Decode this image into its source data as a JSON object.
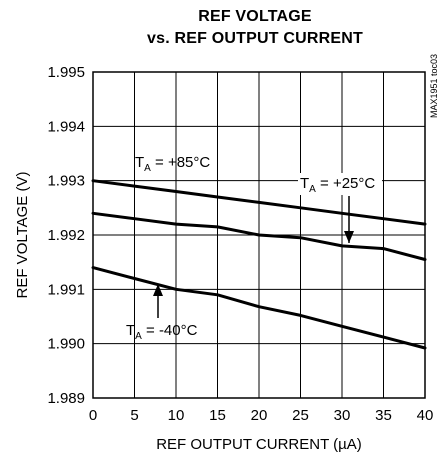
{
  "chart_data": {
    "type": "line",
    "title_line1": "REF VOLTAGE",
    "title_line2": "vs. REF OUTPUT CURRENT",
    "xlabel": "REF OUTPUT CURRENT (µA)",
    "ylabel": "REF VOLTAGE (V)",
    "watermark": "MAX1951 toc03",
    "xlim": [
      0,
      40
    ],
    "ylim": [
      1.989,
      1.995
    ],
    "xticks": [
      0,
      5,
      10,
      15,
      20,
      25,
      30,
      35,
      40
    ],
    "yticks": [
      "1.989",
      "1.990",
      "1.991",
      "1.992",
      "1.993",
      "1.994",
      "1.995"
    ],
    "grid": true,
    "series": [
      {
        "name": "TA = +85°C",
        "x": [
          0,
          5,
          10,
          15,
          20,
          25,
          30,
          35,
          40
        ],
        "y": [
          1.993,
          1.9929,
          1.9928,
          1.9927,
          1.9926,
          1.9925,
          1.9924,
          1.9923,
          1.9922
        ]
      },
      {
        "name": "TA = +25°C",
        "x": [
          0,
          5,
          10,
          15,
          20,
          25,
          30,
          35,
          40
        ],
        "y": [
          1.9924,
          1.9923,
          1.9922,
          1.99215,
          1.992,
          1.99195,
          1.9918,
          1.99175,
          1.99155
        ]
      },
      {
        "name": "TA = -40°C",
        "x": [
          0,
          5,
          10,
          15,
          20,
          25,
          30,
          35,
          40
        ],
        "y": [
          1.9914,
          1.9912,
          1.991,
          1.9909,
          1.99068,
          1.99052,
          1.99032,
          1.99012,
          1.98992
        ]
      }
    ],
    "annotations": [
      {
        "t": "T",
        "sub": "A",
        "rest": " = +85°C",
        "series": 0
      },
      {
        "t": "T",
        "sub": "A",
        "rest": " = +25°C",
        "series": 1
      },
      {
        "t": "T",
        "sub": "A",
        "rest": " = -40°C",
        "series": 2
      }
    ]
  }
}
